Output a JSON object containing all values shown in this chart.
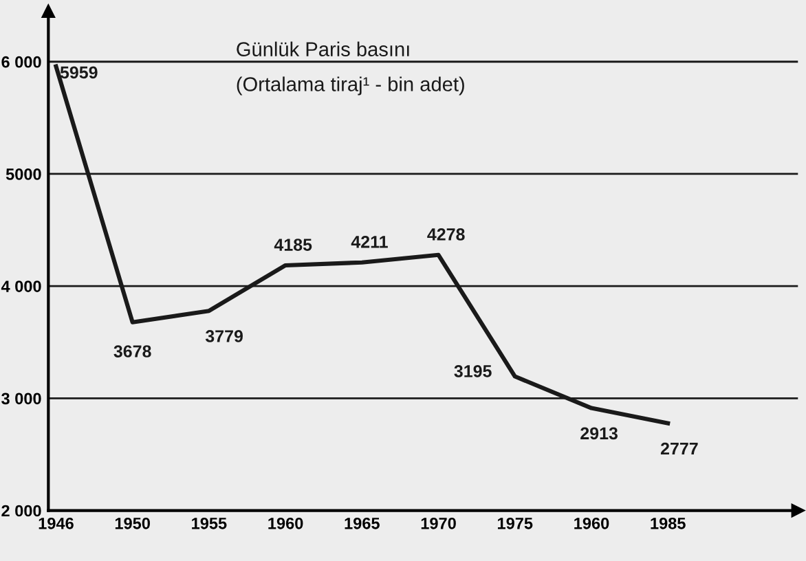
{
  "chart_data": {
    "type": "line",
    "title": "Günlük Paris basını",
    "subtitle": "(Ortalama tiraj¹ - bin adet)",
    "categories": [
      "1946",
      "1950",
      "1955",
      "1960",
      "1965",
      "1970",
      "1975",
      "1960",
      "1985"
    ],
    "series": [
      {
        "color": "#1a1a1a",
        "values": [
          5959,
          3678,
          3779,
          4185,
          4211,
          4278,
          3195,
          2913,
          2777
        ],
        "value_labels": [
          "5959",
          "3678",
          "3779",
          "4185",
          "4211",
          "4278",
          "3195",
          "2913",
          "2777"
        ]
      }
    ],
    "ylim": [
      2000,
      6450
    ],
    "yticks": [
      {
        "value": 2000,
        "label": "2 000"
      },
      {
        "value": 3000,
        "label": "3 000"
      },
      {
        "value": 4000,
        "label": "4 000"
      },
      {
        "value": 5000,
        "label": "5000"
      },
      {
        "value": 6000,
        "label": "6 000"
      }
    ],
    "grid": "y",
    "marker": "none",
    "line_style": "solid"
  }
}
